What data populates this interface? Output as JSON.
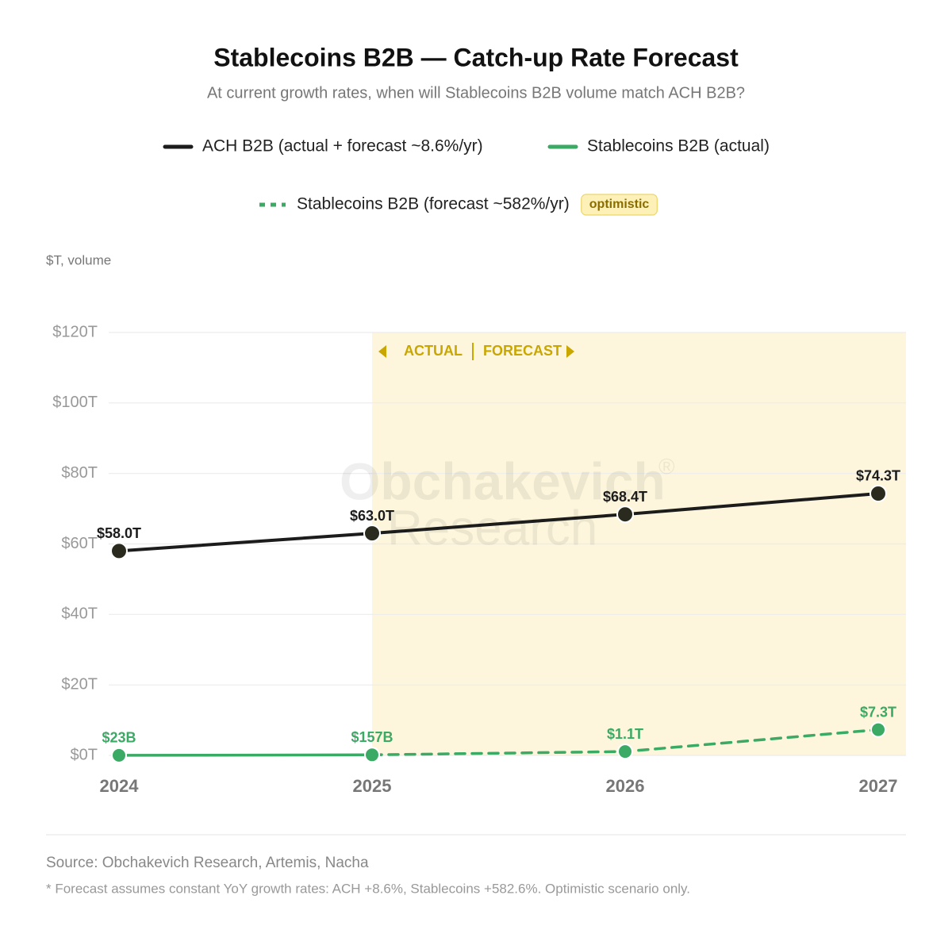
{
  "chart_data": {
    "type": "line",
    "title": "Stablecoins B2B — Catch-up Rate Forecast",
    "subtitle": "At current growth rates, when will Stablecoins B2B volume match ACH B2B?",
    "y_label": "$T, volume",
    "categories": [
      "2024",
      "2025",
      "2026",
      "2027"
    ],
    "forecast_start": "2025",
    "annotations": {
      "actual": "ACTUAL",
      "forecast": "FORECAST"
    },
    "watermark": {
      "name": "Obchakevich",
      "sub": "Research",
      "mark": "®"
    },
    "series": [
      {
        "name": "ACH B2B (actual + forecast ~8.6%/yr)",
        "color": "#1c1c1c",
        "dash": false,
        "values": [
          58.0,
          63.0,
          68.4,
          74.3
        ],
        "value_labels": [
          "$58.0T",
          "$63.0T",
          "$68.4T",
          "$74.3T"
        ]
      },
      {
        "name": "Stablecoins B2B (actual)",
        "color": "#3aaa64",
        "dash": false,
        "values": [
          0.023,
          0.157,
          null,
          null
        ],
        "value_labels": [
          "$23B",
          "$157B",
          null,
          null
        ]
      },
      {
        "name": "Stablecoins B2B (forecast ~582%/yr)",
        "color": "#3aaa64",
        "dash": true,
        "tag": "optimistic",
        "values": [
          null,
          0.157,
          1.1,
          7.3
        ],
        "value_labels": [
          null,
          null,
          "$1.1T",
          "$7.3T"
        ]
      }
    ],
    "ylim": [
      0,
      120
    ],
    "yticks": [
      {
        "value": 0,
        "label": "$0T"
      },
      {
        "value": 20,
        "label": "$20T"
      },
      {
        "value": 40,
        "label": "$40T"
      },
      {
        "value": 60,
        "label": "$60T"
      },
      {
        "value": 80,
        "label": "$80T"
      },
      {
        "value": 100,
        "label": "$100T"
      },
      {
        "value": 120,
        "label": "$120T"
      }
    ],
    "grid": true,
    "source": "Source: Obchakevich Research, Artemis, Nacha",
    "footnote": "* Forecast assumes constant YoY growth rates: ACH +8.6%, Stablecoins +582.6%. Optimistic scenario only."
  }
}
